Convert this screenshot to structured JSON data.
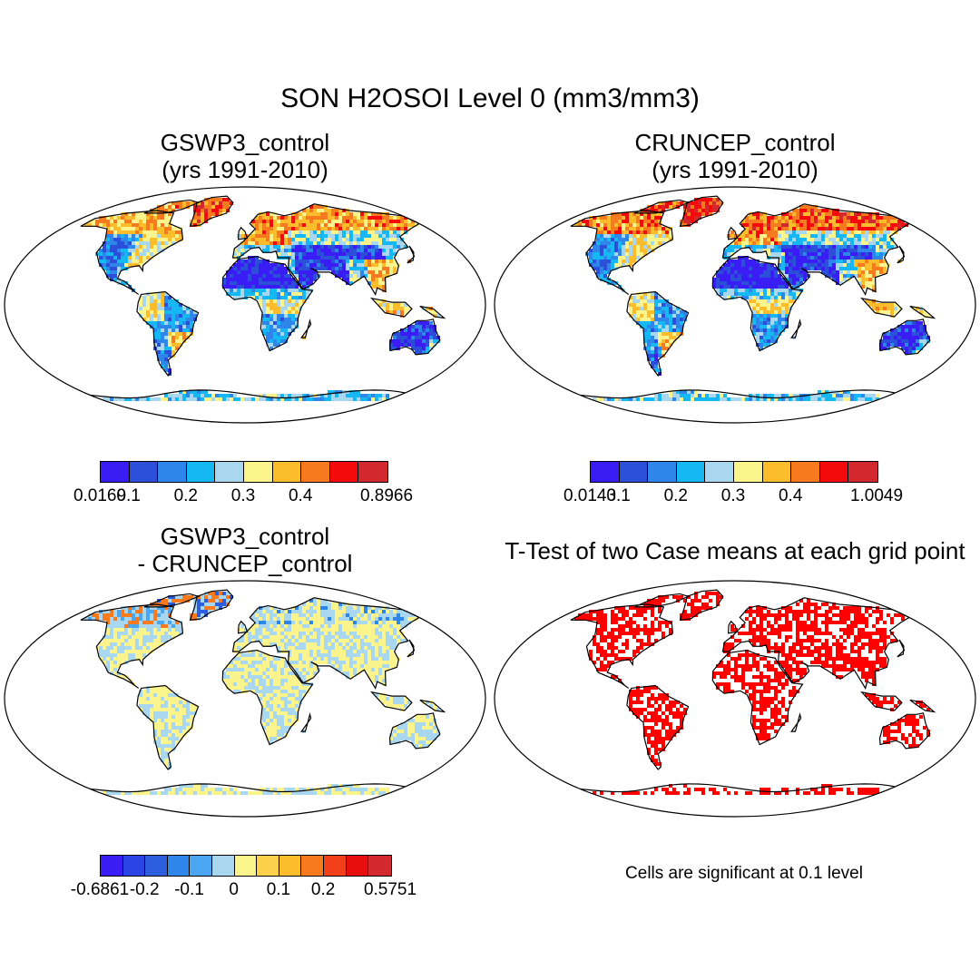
{
  "title": "SON H2OSOI Level 0 (mm3/mm3)",
  "panels": [
    {
      "title_line1": "GSWP3_control",
      "title_line2": "(yrs 1991-2010)",
      "field": "abs"
    },
    {
      "title_line1": "CRUNCEP_control",
      "title_line2": "(yrs 1991-2010)",
      "field": "abs2"
    },
    {
      "title_line1": "GSWP3_control",
      "title_line2": "- CRUNCEP_control",
      "field": "diff"
    },
    {
      "title_line1": "T-Test of two Case means at each grid point",
      "title_line2": "",
      "field": "sig"
    }
  ],
  "colorbars": [
    {
      "colors": [
        "#3a1cf5",
        "#2c4fd9",
        "#2f86ea",
        "#16b8f4",
        "#a9d7f0",
        "#fbf38c",
        "#fbbd2c",
        "#f77a1e",
        "#f40a0a",
        "#d3292e"
      ],
      "labels": [
        "0.0169",
        "0.1",
        "0.2",
        "0.3",
        "0.4",
        "0.8966"
      ],
      "label_positions": [
        1,
        2,
        4,
        6,
        8,
        10
      ]
    },
    {
      "colors": [
        "#3a1cf5",
        "#2c4fd9",
        "#2f86ea",
        "#16b8f4",
        "#a9d7f0",
        "#fbf38c",
        "#fbbd2c",
        "#f77a1e",
        "#f40a0a",
        "#d3292e"
      ],
      "labels": [
        "0.0143",
        "0.1",
        "0.2",
        "0.3",
        "0.4",
        "1.0049"
      ],
      "label_positions": [
        1,
        2,
        4,
        6,
        8,
        10
      ]
    },
    {
      "colors": [
        "#3a1cf5",
        "#2a44e6",
        "#2d5ee0",
        "#2f86ea",
        "#4aa6f0",
        "#a9d7f0",
        "#fbf38c",
        "#fbd04a",
        "#fbbd2c",
        "#f77a1e",
        "#f4401a",
        "#e80e0e",
        "#d3292e"
      ],
      "labels": [
        "-0.6861",
        "-0.2",
        "-0.1",
        "0",
        "0.1",
        "0.2",
        "0.5751"
      ],
      "label_positions": [
        1,
        3,
        5,
        7,
        9,
        11,
        13
      ]
    }
  ],
  "significance_note": "Cells are significant at 0.1 level",
  "significance_color": "#ff0000"
}
